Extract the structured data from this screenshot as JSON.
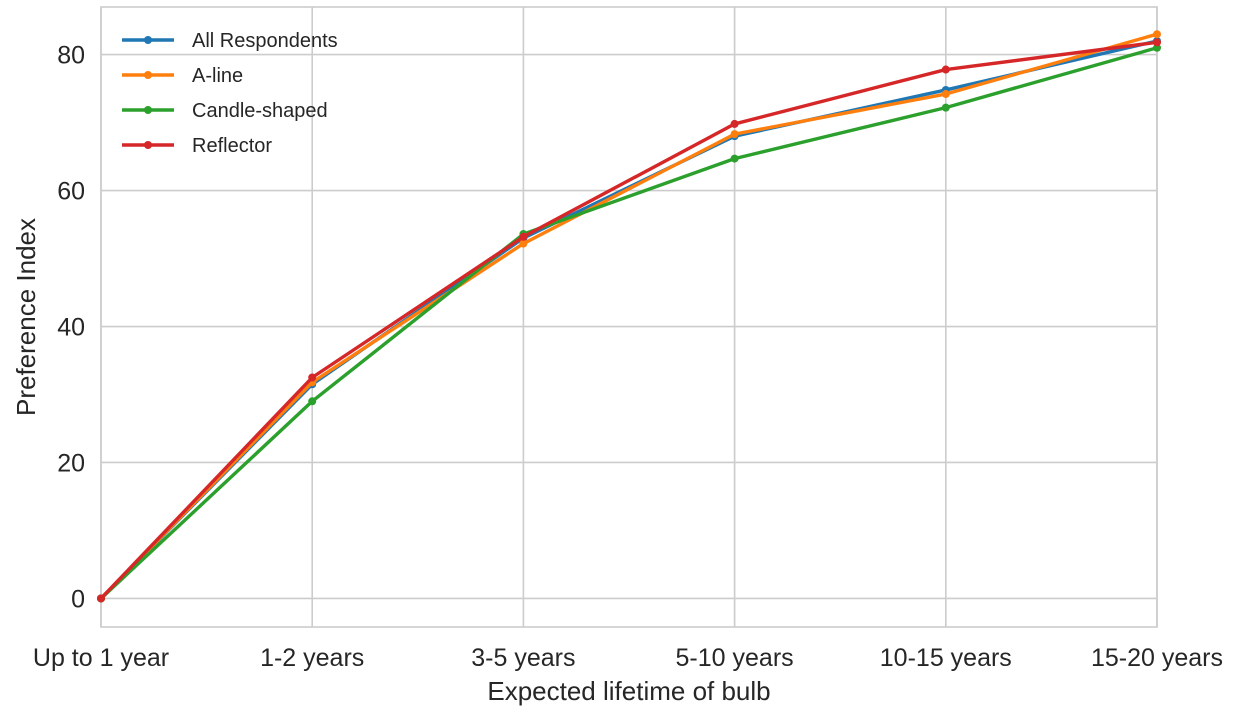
{
  "chart_data": {
    "type": "line",
    "title": "",
    "xlabel": "Expected lifetime of bulb",
    "ylabel": "Preference Index",
    "categories": [
      "Up to 1 year",
      "1-2 years",
      "3-5 years",
      "5-10 years",
      "10-15 years",
      "15-20 years"
    ],
    "y_ticks": [
      0,
      20,
      40,
      60,
      80
    ],
    "ylim": [
      -4.2,
      87
    ],
    "grid": true,
    "legend_position": "top-left",
    "series": [
      {
        "name": "All Respondents",
        "color": "#1f77b4",
        "values": [
          0,
          31.5,
          53,
          68,
          74.8,
          82
        ]
      },
      {
        "name": "A-line",
        "color": "#ff7f0e",
        "values": [
          0,
          31.8,
          52.2,
          68.3,
          74.2,
          83
        ]
      },
      {
        "name": "Candle-shaped",
        "color": "#2ca02c",
        "values": [
          0,
          29,
          53.6,
          64.7,
          72.2,
          81
        ]
      },
      {
        "name": "Reflector",
        "color": "#d62728",
        "values": [
          0,
          32.5,
          53.2,
          69.8,
          77.8,
          81.8
        ]
      }
    ]
  }
}
